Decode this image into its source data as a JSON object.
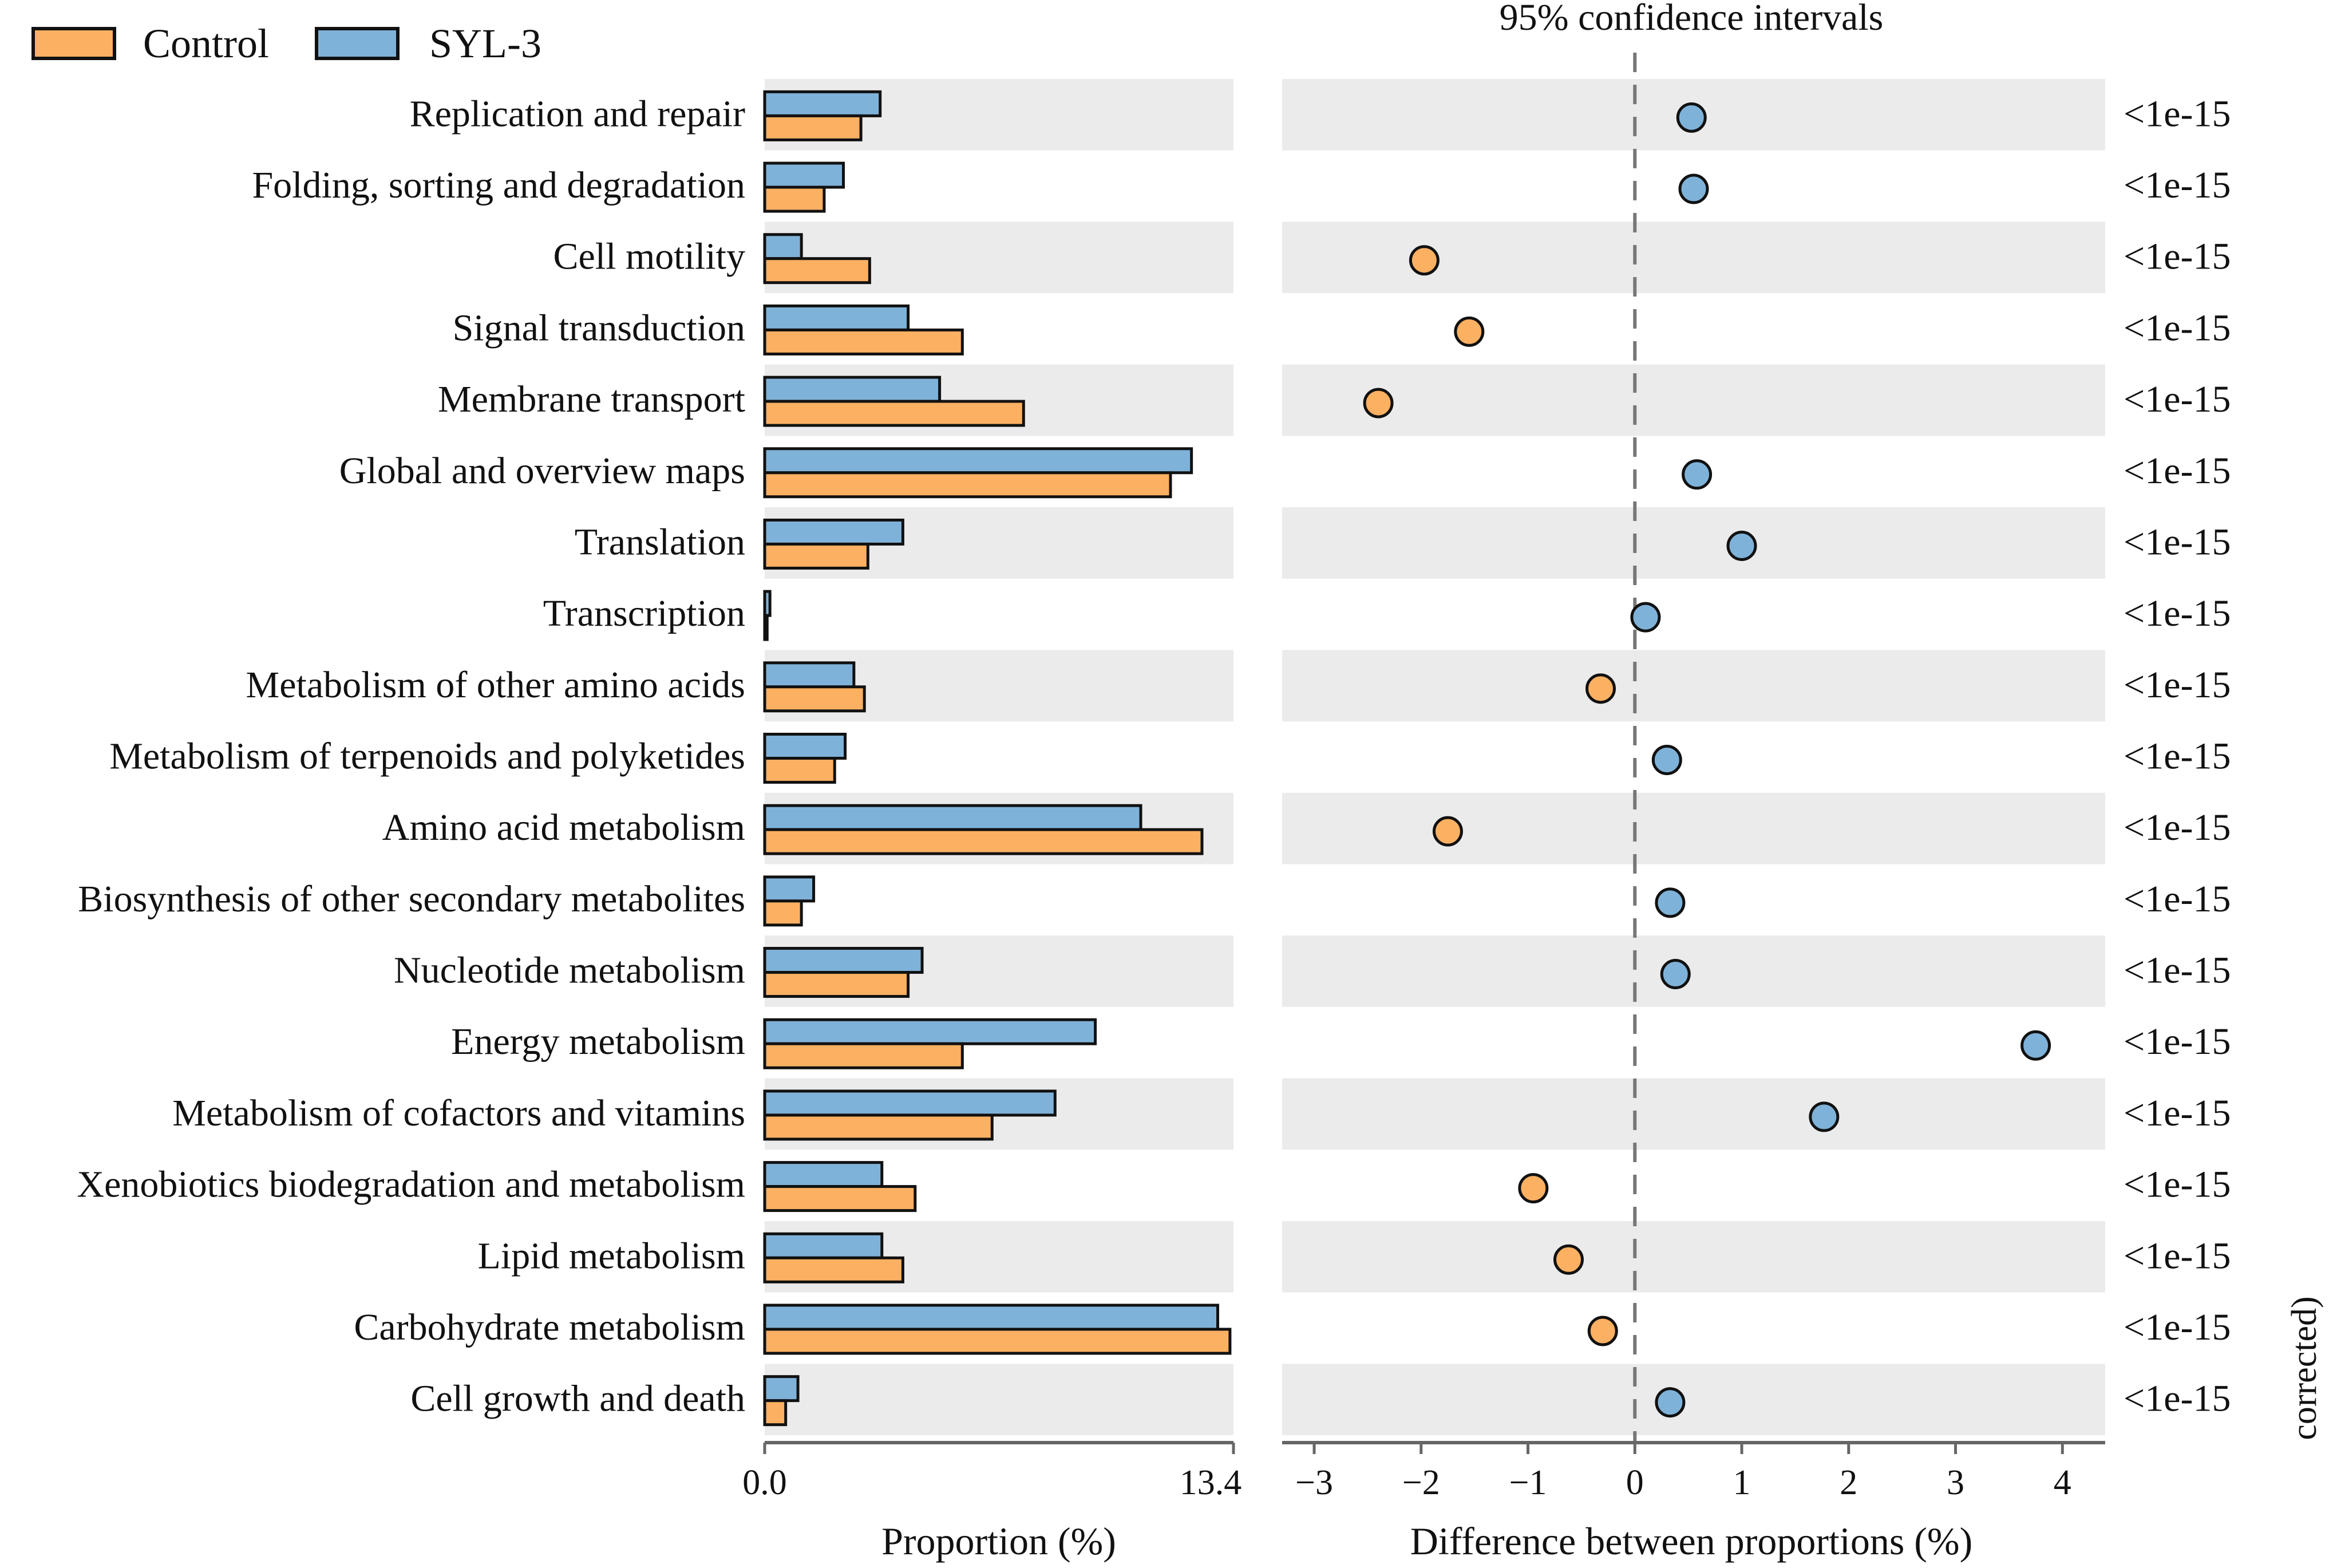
{
  "chart_data": {
    "type": "extended_error_bar",
    "legend": [
      {
        "name": "Control",
        "color": "#fbb062"
      },
      {
        "name": "SYL-3",
        "color": "#7fb2d9"
      }
    ],
    "ci_title": "95% confidence intervals",
    "categories": [
      "Replication and repair",
      "Folding, sorting and degradation",
      "Cell motility",
      "Signal transduction",
      "Membrane transport",
      "Global and overview maps",
      "Translation",
      "Transcription",
      "Metabolism of other amino acids",
      "Metabolism of terpenoids and polyketides",
      "Amino acid metabolism",
      "Biosynthesis of other secondary metabolites",
      "Nucleotide metabolism",
      "Energy metabolism",
      "Metabolism of cofactors and vitamins",
      "Xenobiotics biodegradation and metabolism",
      "Lipid metabolism",
      "Carbohydrate metabolism",
      "Cell growth and death"
    ],
    "series": [
      {
        "name": "SYL-3",
        "values": [
          3.3,
          2.25,
          1.05,
          4.1,
          5.0,
          12.2,
          3.95,
          0.15,
          2.55,
          2.3,
          10.75,
          1.4,
          4.5,
          9.45,
          8.3,
          3.35,
          3.35,
          12.95,
          0.95
        ]
      },
      {
        "name": "Control",
        "values": [
          2.75,
          1.7,
          3.0,
          5.65,
          7.4,
          11.6,
          2.95,
          0.07,
          2.85,
          2.0,
          12.5,
          1.05,
          4.1,
          5.65,
          6.5,
          4.3,
          3.95,
          13.3,
          0.6
        ]
      }
    ],
    "differences": [
      0.53,
      0.55,
      -1.97,
      -1.55,
      -2.4,
      0.58,
      1.0,
      0.1,
      -0.32,
      0.3,
      -1.75,
      0.33,
      0.38,
      3.75,
      1.77,
      -0.95,
      -0.62,
      -0.3,
      0.33
    ],
    "p_values": [
      "<1e-15",
      "<1e-15",
      "<1e-15",
      "<1e-15",
      "<1e-15",
      "<1e-15",
      "<1e-15",
      "<1e-15",
      "<1e-15",
      "<1e-15",
      "<1e-15",
      "<1e-15",
      "<1e-15",
      "<1e-15",
      "<1e-15",
      "<1e-15",
      "<1e-15",
      "<1e-15",
      "<1e-15"
    ],
    "proportion_axis": {
      "label": "Proportion (%)",
      "range": [
        0.0,
        13.4
      ],
      "tick_labels": [
        "0.0",
        "13.4"
      ]
    },
    "difference_axis": {
      "label": "Difference between proportions (%)",
      "range": [
        -3.3,
        4.4
      ],
      "ticks": [
        -3,
        -2,
        -1,
        0,
        1,
        2,
        3,
        4
      ],
      "tick_labels": [
        "−3",
        "−2",
        "−1",
        "0",
        "1",
        "2",
        "3",
        "4"
      ]
    },
    "pvalue_axis_label_fragment": "corrected)"
  }
}
